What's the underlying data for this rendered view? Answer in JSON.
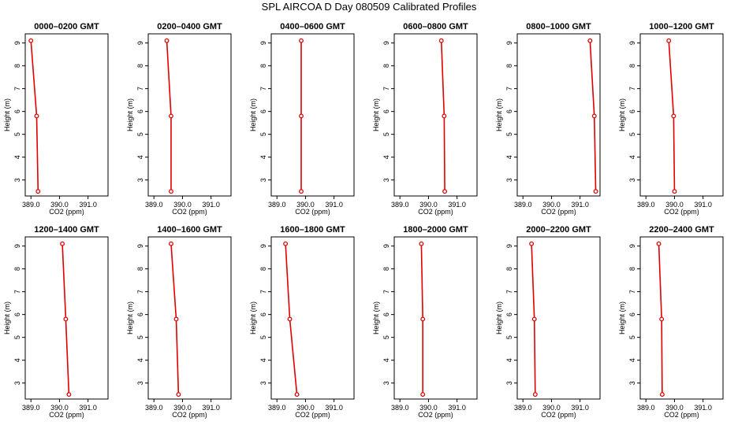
{
  "title": "SPL AIRCOA D  Day 080509  Calibrated Profiles",
  "chart_data": {
    "type": "line",
    "xlabel": "CO2 (ppm)",
    "ylabel": "Height (m)",
    "xlim": [
      388.8,
      391.7
    ],
    "ylim": [
      2.3,
      9.4
    ],
    "xticks": [
      "389.0",
      "390.0",
      "391.0"
    ],
    "xtick_values": [
      389.0,
      390.0,
      391.0
    ],
    "yticks": [
      "3",
      "4",
      "5",
      "6",
      "7",
      "8",
      "9"
    ],
    "ytick_values": [
      3,
      4,
      5,
      6,
      7,
      8,
      9
    ],
    "line_color": "#e00000",
    "heights": [
      9.1,
      5.8,
      2.5
    ],
    "panels": [
      {
        "title": "0000–0200 GMT",
        "values": [
          389.0,
          389.2,
          389.25
        ]
      },
      {
        "title": "0200–0400 GMT",
        "values": [
          389.45,
          389.6,
          389.6
        ]
      },
      {
        "title": "0400–0600 GMT",
        "values": [
          389.85,
          389.85,
          389.85
        ]
      },
      {
        "title": "0600–0800 GMT",
        "values": [
          390.45,
          390.55,
          390.57
        ]
      },
      {
        "title": "0800–1000 GMT",
        "values": [
          391.35,
          391.5,
          391.55
        ]
      },
      {
        "title": "1000–1200 GMT",
        "values": [
          389.8,
          389.97,
          390.0
        ]
      },
      {
        "title": "1200–1400 GMT",
        "values": [
          390.1,
          390.22,
          390.33
        ]
      },
      {
        "title": "1400–1600 GMT",
        "values": [
          389.6,
          389.78,
          389.86
        ]
      },
      {
        "title": "1600–1800 GMT",
        "values": [
          389.3,
          389.45,
          389.7
        ]
      },
      {
        "title": "1800–2000 GMT",
        "values": [
          389.75,
          389.8,
          389.8
        ]
      },
      {
        "title": "2000–2200 GMT",
        "values": [
          389.3,
          389.4,
          389.43
        ]
      },
      {
        "title": "2200–2400 GMT",
        "values": [
          389.45,
          389.55,
          389.57
        ]
      }
    ]
  }
}
